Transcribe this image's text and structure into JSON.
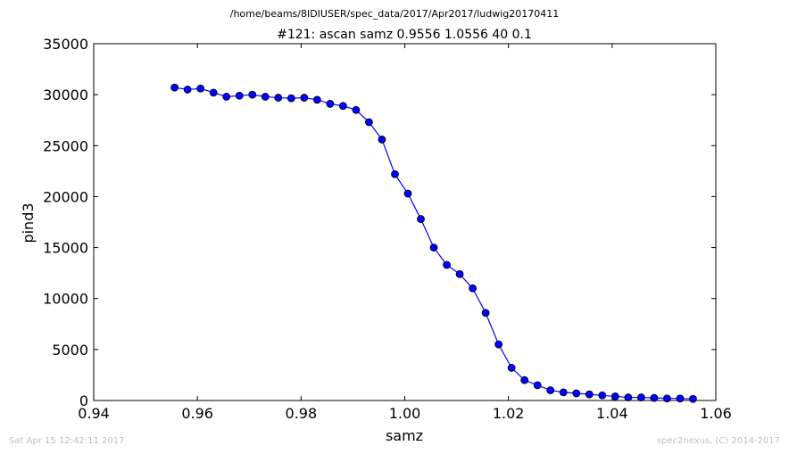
{
  "footer": {
    "timestamp": "Sat Apr 15 12:42:11 2017",
    "credit": "spec2nexus, (C) 2014-2017"
  },
  "chart_data": {
    "type": "line",
    "suptitle": "/home/beams/8IDIUSER/spec_data/2017/Apr2017/ludwig20170411",
    "title": "#121: ascan  samz 0.9556 1.0556  40 0.1",
    "xlabel": "samz",
    "ylabel": "pind3",
    "xlim": [
      0.94,
      1.06
    ],
    "ylim": [
      0,
      35000
    ],
    "xticks": [
      "0.94",
      "0.96",
      "0.98",
      "1.00",
      "1.02",
      "1.04",
      "1.06"
    ],
    "yticks": [
      "0",
      "5000",
      "10000",
      "15000",
      "20000",
      "25000",
      "30000",
      "35000"
    ],
    "grid": false,
    "line_color": "#0000ff",
    "marker": "circle",
    "series": [
      {
        "x": [
          0.9556,
          0.9581,
          0.9606,
          0.9631,
          0.9656,
          0.9681,
          0.9706,
          0.9731,
          0.9756,
          0.9781,
          0.9806,
          0.9831,
          0.9856,
          0.9881,
          0.9906,
          0.9931,
          0.9956,
          0.9981,
          1.0006,
          1.0031,
          1.0056,
          1.0081,
          1.0106,
          1.0131,
          1.0156,
          1.0181,
          1.0206,
          1.0231,
          1.0256,
          1.0281,
          1.0306,
          1.0331,
          1.0356,
          1.0381,
          1.0406,
          1.0431,
          1.0456,
          1.0481,
          1.0506,
          1.0531,
          1.0556
        ],
        "y": [
          30700,
          30500,
          30600,
          30200,
          29800,
          29900,
          30000,
          29800,
          29700,
          29650,
          29700,
          29500,
          29100,
          28900,
          28500,
          27300,
          25600,
          22200,
          20300,
          17800,
          15000,
          13300,
          12400,
          11000,
          8600,
          5500,
          3200,
          2000,
          1500,
          1000,
          800,
          700,
          600,
          500,
          400,
          300,
          300,
          250,
          200,
          200,
          150
        ]
      }
    ]
  }
}
